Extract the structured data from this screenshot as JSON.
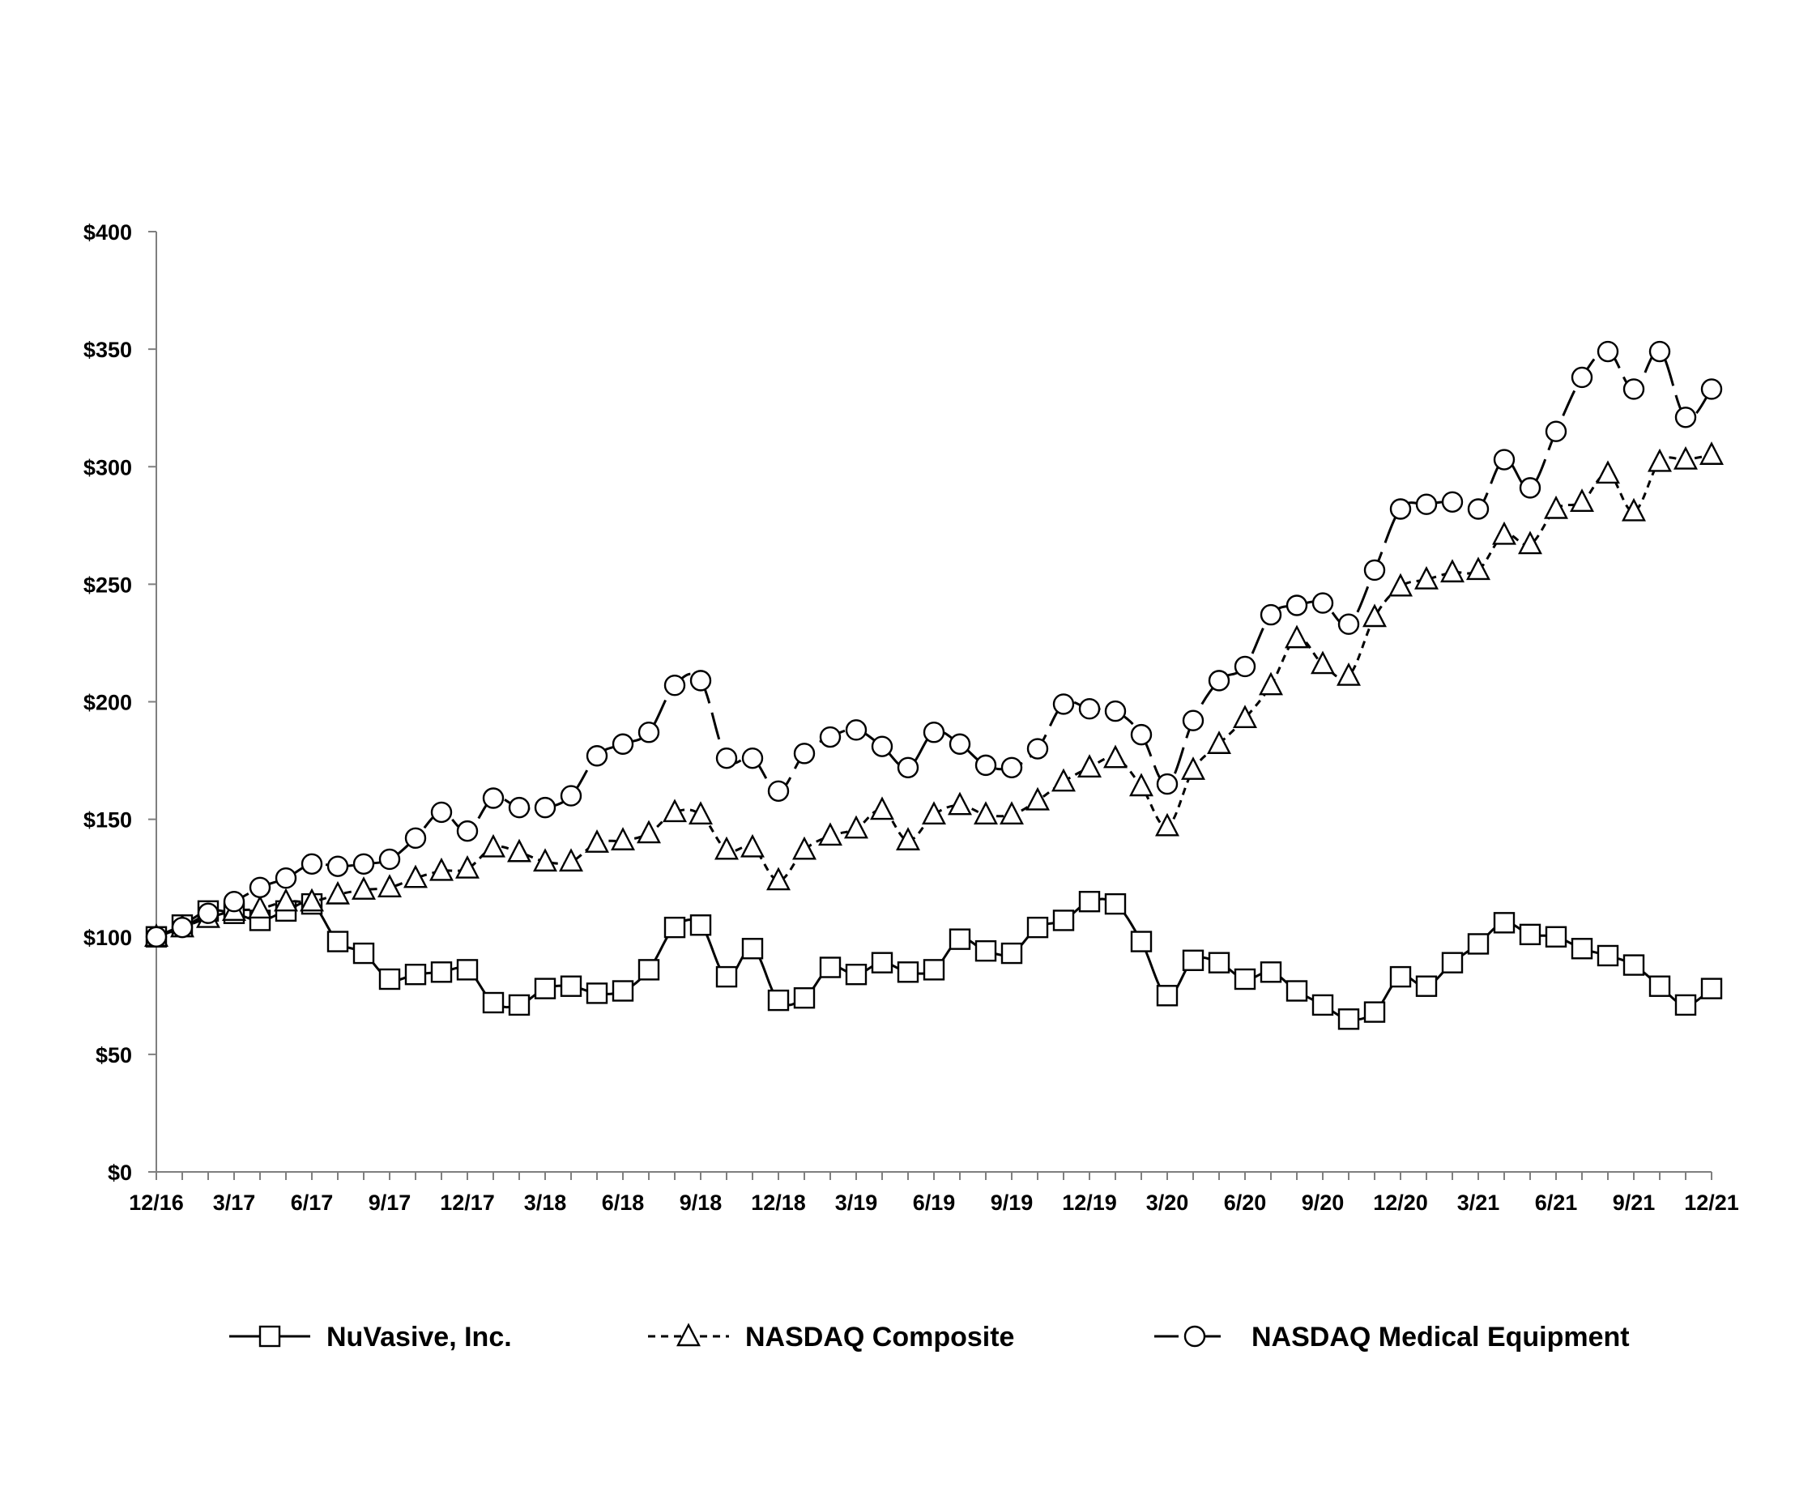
{
  "chart_data": {
    "type": "line",
    "title": "",
    "xlabel": "",
    "ylabel": "",
    "ylim": [
      0,
      400
    ],
    "yticks": [
      "$0",
      "$50",
      "$100",
      "$150",
      "$200",
      "$250",
      "$300",
      "$350",
      "$400"
    ],
    "ytick_values": [
      0,
      50,
      100,
      150,
      200,
      250,
      300,
      350,
      400
    ],
    "x_tick_labels": [
      "12/16",
      "3/17",
      "6/17",
      "9/17",
      "12/17",
      "3/18",
      "6/18",
      "9/18",
      "12/18",
      "3/19",
      "6/19",
      "9/19",
      "12/19",
      "3/20",
      "6/20",
      "9/20",
      "12/20",
      "3/21",
      "6/21",
      "9/21",
      "12/21"
    ],
    "x_tick_label_positions": [
      0,
      3,
      6,
      9,
      12,
      15,
      18,
      21,
      24,
      27,
      30,
      33,
      36,
      39,
      42,
      45,
      48,
      51,
      54,
      57,
      60
    ],
    "num_points": 61,
    "grid": false,
    "legend_position": "bottom",
    "series": [
      {
        "name": "NuVasive, Inc.",
        "marker": "square",
        "line_style": "solid",
        "values": [
          100,
          105,
          111,
          110,
          107,
          111,
          114,
          98,
          93,
          82,
          84,
          85,
          86,
          72,
          71,
          78,
          79,
          76,
          77,
          86,
          104,
          105,
          83,
          95,
          73,
          74,
          87,
          84,
          89,
          85,
          86,
          99,
          94,
          93,
          104,
          107,
          115,
          114,
          98,
          75,
          90,
          89,
          82,
          85,
          77,
          71,
          65,
          68,
          83,
          79,
          89,
          97,
          106,
          101,
          100,
          95,
          92,
          88,
          79,
          71,
          78
        ]
      },
      {
        "name": "NASDAQ Composite",
        "marker": "triangle",
        "line_style": "dashed",
        "values": [
          100,
          104,
          108,
          111,
          112,
          115,
          115,
          118,
          120,
          121,
          125,
          128,
          129,
          138,
          136,
          132,
          132,
          140,
          141,
          144,
          153,
          152,
          137,
          138,
          124,
          137,
          143,
          146,
          154,
          141,
          152,
          156,
          152,
          152,
          158,
          166,
          172,
          176,
          164,
          147,
          171,
          182,
          193,
          207,
          227,
          216,
          211,
          236,
          249,
          252,
          255,
          256,
          271,
          267,
          282,
          285,
          297,
          281,
          302,
          303,
          305
        ]
      },
      {
        "name": "NASDAQ Medical Equipment",
        "marker": "circle",
        "line_style": "long-dash",
        "values": [
          100,
          104,
          110,
          115,
          121,
          125,
          131,
          130,
          131,
          133,
          142,
          153,
          145,
          159,
          155,
          155,
          160,
          177,
          182,
          187,
          207,
          209,
          176,
          176,
          162,
          178,
          185,
          188,
          181,
          172,
          187,
          182,
          173,
          172,
          180,
          199,
          197,
          196,
          186,
          165,
          192,
          209,
          215,
          237,
          241,
          242,
          233,
          256,
          282,
          284,
          285,
          282,
          303,
          291,
          315,
          338,
          349,
          333,
          349,
          321,
          333
        ]
      }
    ]
  }
}
